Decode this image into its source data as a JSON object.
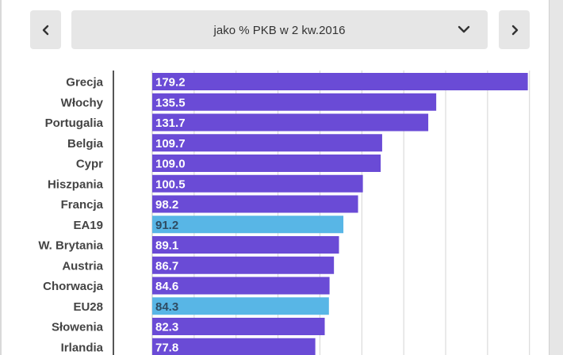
{
  "controls": {
    "selected_metric": "jako % PKB w 2 kw.2016",
    "prev_icon": "chevron-left-icon",
    "next_icon": "chevron-right-icon",
    "dropdown_icon": "chevron-down-icon"
  },
  "colors": {
    "bar": "#6a4bd6",
    "highlight": "#58b6e6",
    "bar_text": "#ffffff",
    "highlight_text": "#2f4c63",
    "grid": "#d4d4d4",
    "axis": "#555555",
    "control_bg": "#e6e6e6"
  },
  "chart_data": {
    "type": "bar",
    "orientation": "horizontal",
    "categories": [
      "Grecja",
      "Włochy",
      "Portugalia",
      "Belgia",
      "Cypr",
      "Hiszpania",
      "Francja",
      "EA19",
      "W. Brytania",
      "Austria",
      "Chorwacja",
      "EU28",
      "Słowenia",
      "Irlandia"
    ],
    "values": [
      179.2,
      135.5,
      131.7,
      109.7,
      109.0,
      100.5,
      98.2,
      91.2,
      89.1,
      86.7,
      84.6,
      84.3,
      82.3,
      77.8
    ],
    "value_labels": [
      "179.2",
      "135.5",
      "131.7",
      "109.7",
      "109.0",
      "100.5",
      "98.2",
      "91.2",
      "89.1",
      "86.7",
      "84.6",
      "84.3",
      "82.3",
      "77.8"
    ],
    "highlighted": [
      "EA19",
      "EU28"
    ],
    "xlim": [
      0,
      180
    ],
    "grid_step": 20,
    "grid": true
  }
}
